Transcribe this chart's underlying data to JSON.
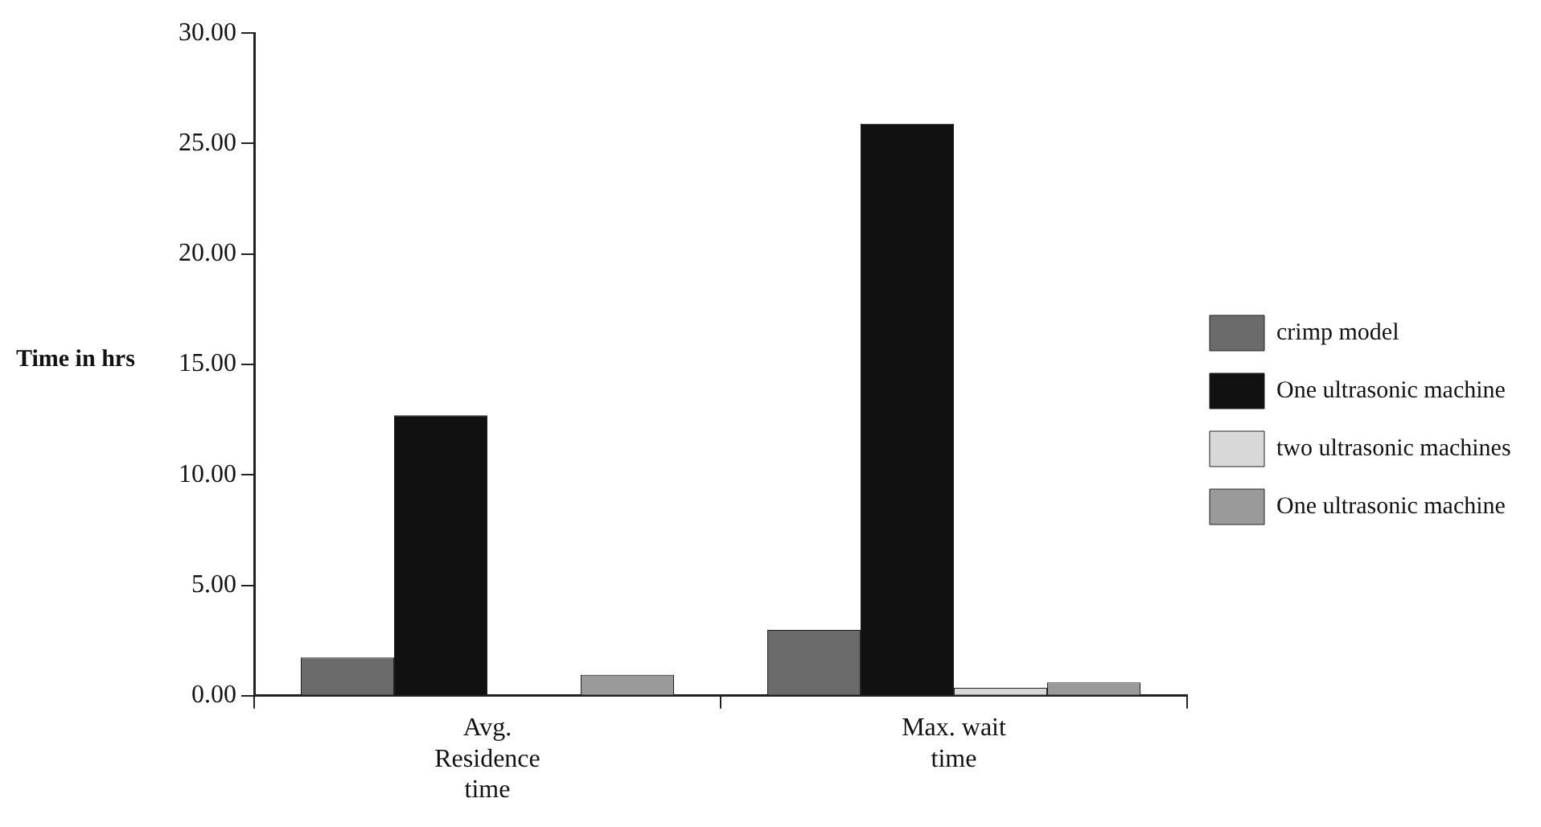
{
  "chart_data": {
    "type": "bar",
    "ylabel": "Time in hrs",
    "categories": [
      "Avg.\nResidence\ntime",
      "Max. wait\ntime"
    ],
    "series": [
      {
        "name": "crimp model",
        "color": "#6b6b6b",
        "values": [
          1.73,
          2.98
        ]
      },
      {
        "name": "One ultrasonic machine",
        "color": "#111111",
        "values": [
          12.7,
          25.9
        ]
      },
      {
        "name": "two ultrasonic machines",
        "color": "#d8d8d8",
        "values": [
          0,
          0.36
        ]
      },
      {
        "name": "One ultrasonic machine",
        "color": "#9a9a9a",
        "values": [
          0.95,
          0.6
        ]
      }
    ],
    "ylim": [
      0,
      30
    ],
    "yticks": [
      {
        "value": 0,
        "label": "0.00"
      },
      {
        "value": 5,
        "label": "5.00"
      },
      {
        "value": 10,
        "label": "10.00"
      },
      {
        "value": 15,
        "label": "15.00"
      },
      {
        "value": 20,
        "label": "20.00"
      },
      {
        "value": 25,
        "label": "25.00"
      },
      {
        "value": 30,
        "label": "30.00"
      }
    ],
    "grid": false,
    "legend": "right"
  }
}
